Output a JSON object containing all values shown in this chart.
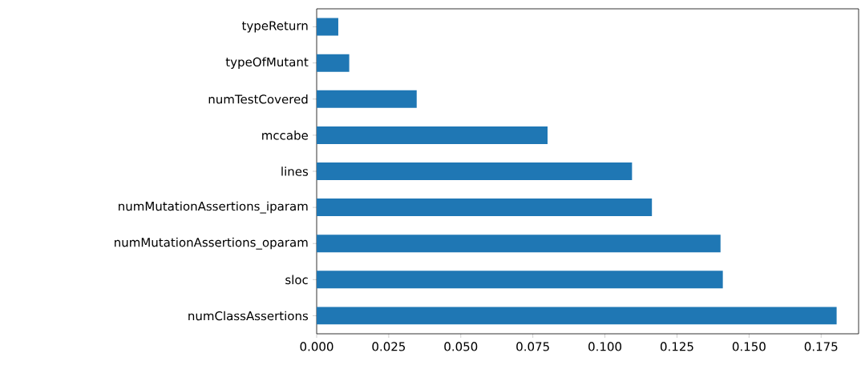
{
  "chart_data": {
    "type": "bar",
    "orientation": "horizontal",
    "categories": [
      "typeReturn",
      "typeOfMutant",
      "numTestCovered",
      "mccabe",
      "lines",
      "numMutationAssertions_iparam",
      "numMutationAssertions_oparam",
      "sloc",
      "numClassAssertions"
    ],
    "values": [
      0.0075,
      0.0113,
      0.0347,
      0.0801,
      0.1094,
      0.1163,
      0.1401,
      0.1409,
      0.1804
    ],
    "color": "#1f77b4",
    "xlim": [
      0,
      0.188
    ],
    "xticks": [
      {
        "value": 0,
        "label": "0.000"
      },
      {
        "value": 0.025,
        "label": "0.025"
      },
      {
        "value": 0.05,
        "label": "0.050"
      },
      {
        "value": 0.075,
        "label": "0.075"
      },
      {
        "value": 0.1,
        "label": "0.100"
      },
      {
        "value": 0.125,
        "label": "0.125"
      },
      {
        "value": 0.15,
        "label": "0.150"
      },
      {
        "value": 0.175,
        "label": "0.175"
      }
    ]
  }
}
